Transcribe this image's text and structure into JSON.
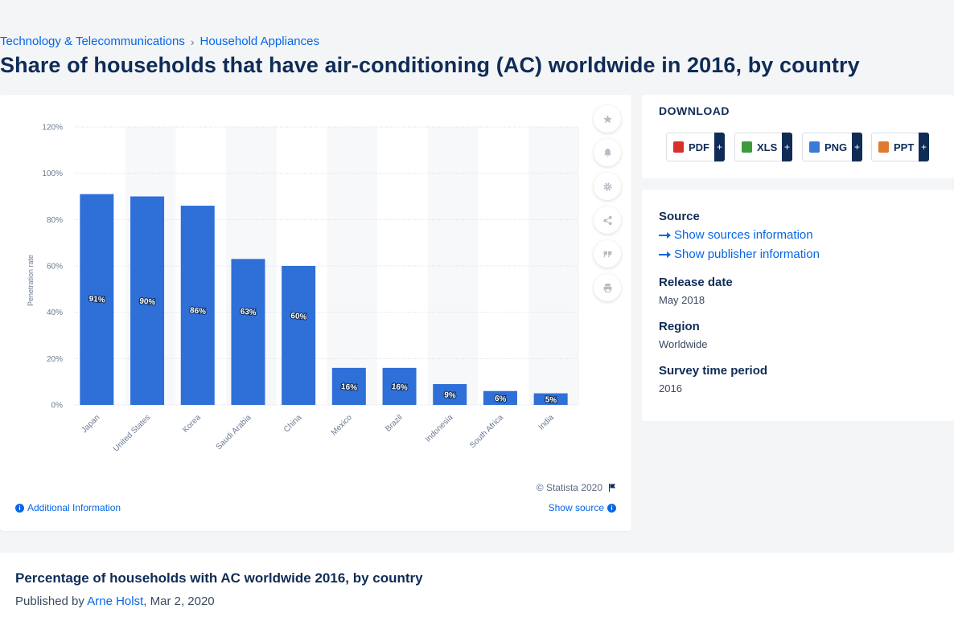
{
  "breadcrumb": {
    "items": [
      "Technology & Telecommunications",
      "Household Appliances"
    ],
    "separator": "›"
  },
  "page_title": "Share of households that have air-conditioning (AC) worldwide in 2016, by country",
  "chart_footer": {
    "copyright": "© Statista 2020",
    "additional_info": "Additional Information",
    "show_source": "Show source"
  },
  "toolbar": {
    "icons": [
      "star-icon",
      "bell-icon",
      "gear-icon",
      "share-icon",
      "quote-icon",
      "print-icon"
    ]
  },
  "download": {
    "title": "DOWNLOAD",
    "buttons": [
      {
        "label": "PDF",
        "color": "#d9302c"
      },
      {
        "label": "XLS",
        "color": "#3f9a3f"
      },
      {
        "label": "PNG",
        "color": "#3a7bd5"
      },
      {
        "label": "PPT",
        "color": "#e07a2e"
      }
    ],
    "plus": "+"
  },
  "info": {
    "source_heading": "Source",
    "show_sources": "Show sources information",
    "show_publisher": "Show publisher information",
    "release_heading": "Release date",
    "release_value": "May 2018",
    "region_heading": "Region",
    "region_value": "Worldwide",
    "survey_heading": "Survey time period",
    "survey_value": "2016"
  },
  "bottom": {
    "title": "Percentage of households with AC worldwide 2016, by country",
    "published_prefix": "Published by ",
    "author": "Arne Holst",
    "date": ", Mar 2, 2020"
  },
  "colors": {
    "bar": "#2f6fd8",
    "accent": "#0666e5",
    "navy": "#0f2c56"
  },
  "chart_data": {
    "type": "bar",
    "categories": [
      "Japan",
      "United States",
      "Korea",
      "Saudi Arabia",
      "China",
      "Mexico",
      "Brazil",
      "Indonesia",
      "South Africa",
      "India"
    ],
    "values": [
      91,
      90,
      86,
      63,
      60,
      16,
      16,
      9,
      6,
      5
    ],
    "data_labels": [
      "91%",
      "90%",
      "86%",
      "63%",
      "60%",
      "16%",
      "16%",
      "9%",
      "6%",
      "5%"
    ],
    "ylabel": "Penetration rate",
    "ylim": [
      0,
      120
    ],
    "yticks": [
      0,
      20,
      40,
      60,
      80,
      100,
      120
    ],
    "ytick_labels": [
      "0%",
      "20%",
      "40%",
      "60%",
      "80%",
      "100%",
      "120%"
    ],
    "grid": true
  }
}
